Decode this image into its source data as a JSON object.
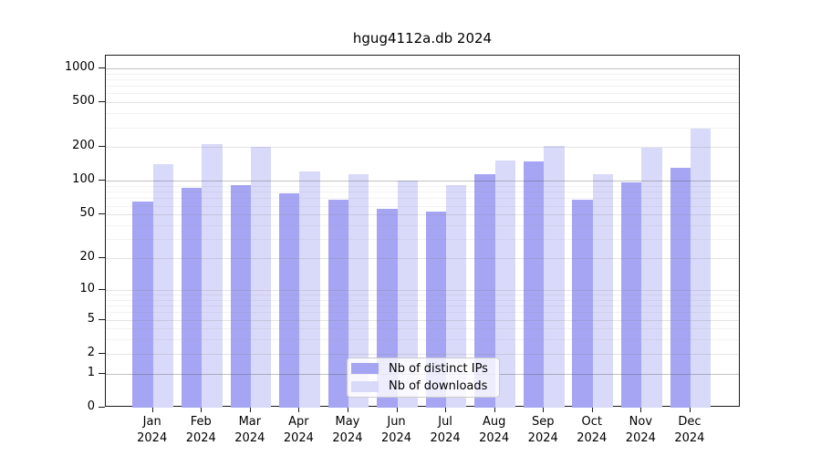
{
  "chart_data": {
    "type": "bar",
    "title": "hgug4112a.db 2024",
    "categories": [
      "Jan 2024",
      "Feb 2024",
      "Mar 2024",
      "Apr 2024",
      "May 2024",
      "Jun 2024",
      "Jul 2024",
      "Aug 2024",
      "Sep 2024",
      "Oct 2024",
      "Nov 2024",
      "Dec 2024"
    ],
    "series": [
      {
        "name": "Nb of distinct IPs",
        "color": "#a5a5f3",
        "values": [
          65,
          86,
          91,
          77,
          68,
          56,
          53,
          115,
          149,
          68,
          97,
          130
        ]
      },
      {
        "name": "Nb of downloads",
        "color": "#d9d9f9",
        "values": [
          141,
          215,
          200,
          122,
          114,
          100,
          91,
          151,
          204,
          114,
          198,
          291
        ]
      }
    ],
    "y_scale": "log10(value+1)",
    "ylim": [
      0,
      1260
    ],
    "y_ticks": [
      0,
      1,
      2,
      5,
      10,
      20,
      50,
      100,
      200,
      500,
      1000
    ],
    "y_major_gridlines": [
      1,
      100,
      1000
    ],
    "y_minor_gridlines": [
      3,
      4,
      6,
      7,
      8,
      9,
      30,
      40,
      60,
      70,
      80,
      90,
      300,
      400,
      600,
      700,
      800,
      900
    ],
    "grid": true,
    "legend_position": "bottom-center",
    "xlabel": "",
    "ylabel": ""
  }
}
